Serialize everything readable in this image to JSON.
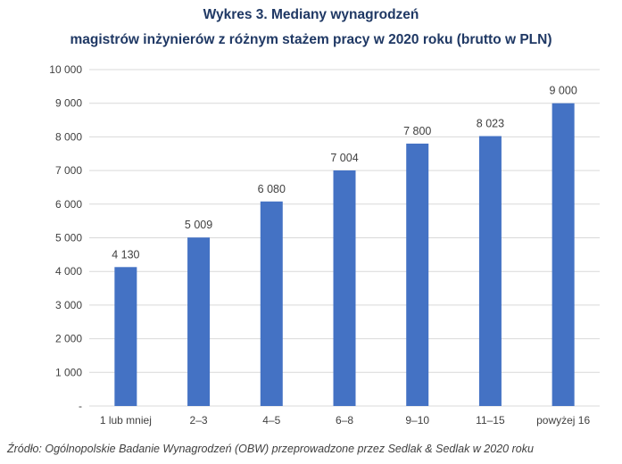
{
  "chart_data": {
    "type": "bar",
    "title": "Wykres 3. Mediany wynagrodzeń",
    "subtitle": "magistrów inżynierów z różnym stażem pracy w 2020 roku (brutto w PLN)",
    "categories": [
      "1 lub mniej",
      "2–3",
      "4–5",
      "6–8",
      "9–10",
      "11–15",
      "powyżej 16"
    ],
    "values": [
      4130,
      5009,
      6080,
      7004,
      7800,
      8023,
      9000
    ],
    "value_labels": [
      "4 130",
      "5 009",
      "6 080",
      "7 004",
      "7 800",
      "8 023",
      "9 000"
    ],
    "y_ticks": [
      "-",
      "1 000",
      "2 000",
      "3 000",
      "4 000",
      "5 000",
      "6 000",
      "7 000",
      "8 000",
      "9 000",
      "10 000"
    ],
    "ylim": [
      0,
      10000
    ],
    "xlabel": "",
    "ylabel": "",
    "grid": true,
    "legend": "none",
    "bar_color": "#4472c4",
    "grid_color": "#d9d9d9"
  },
  "source": "Źródło: Ogólnopolskie Badanie Wynagrodzeń (OBW) przeprowadzone przez Sedlak & Sedlak w 2020 roku"
}
